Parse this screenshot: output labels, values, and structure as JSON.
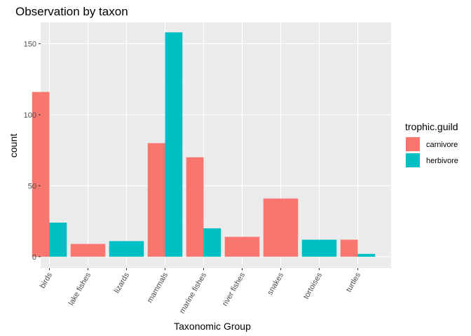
{
  "chart_data": {
    "type": "bar",
    "title": "Observation by taxon",
    "xlabel": "Taxonomic Group",
    "ylabel": "count",
    "categories": [
      "birds",
      "lake fishes",
      "lizards",
      "mammals",
      "marine fishes",
      "river fishes",
      "snakes",
      "tortoises",
      "turtles"
    ],
    "series": [
      {
        "name": "carnivore",
        "color": "#F8766D",
        "values": [
          116,
          9,
          null,
          80,
          70,
          14,
          41,
          null,
          12
        ]
      },
      {
        "name": "herbivore",
        "color": "#00BFC4",
        "values": [
          24,
          null,
          11,
          158,
          20,
          null,
          null,
          12,
          2
        ]
      }
    ],
    "ylim": [
      -8,
      165
    ],
    "yticks": [
      0,
      50,
      100,
      150
    ],
    "grid": true,
    "legend": {
      "title": "trophic.guild",
      "position": "right"
    },
    "position": "dodge2 (single bars fill full width)",
    "panel_background": "#EBEBEB"
  }
}
